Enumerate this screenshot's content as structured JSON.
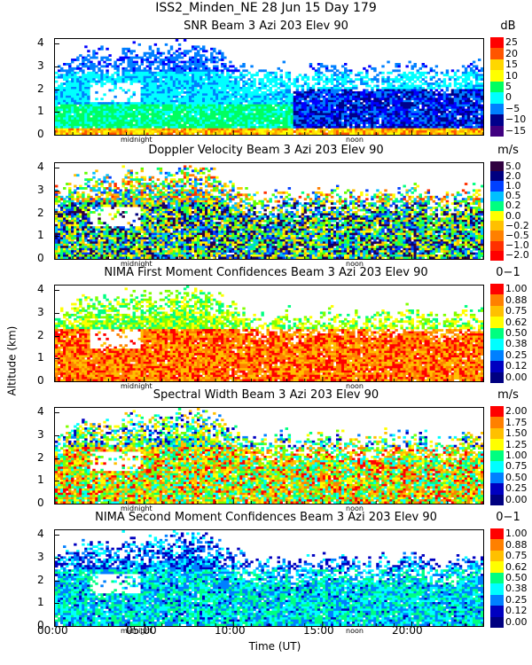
{
  "figure": {
    "title_line1": "ISS2_Minden_NE  28 Jun 15 Day 179",
    "ylabel": "Altitude (km)",
    "xlabel": "Time (UT)",
    "x_ticks": [
      "00:00",
      "05:00",
      "10:00",
      "15:00",
      "20:00"
    ],
    "y_ticks": [
      "0",
      "1",
      "2",
      "3",
      "4"
    ],
    "midnight_label": "midnight",
    "noon_label": "noon"
  },
  "chart_data": [
    {
      "type": "heatmap",
      "title": "SNR Beam 3 Azi 203 Elev 90",
      "units": "dB",
      "colorbar": [
        "25",
        "20",
        "15",
        "10",
        "5",
        "0",
        "−5",
        "−10",
        "−15"
      ],
      "colors": [
        "#ff0000",
        "#ff5500",
        "#ffa500",
        "#ffd700",
        "#ffff00",
        "#7fff00",
        "#00ff60",
        "#00ffff",
        "#0080ff",
        "#0000ff",
        "#00008b",
        "#400080"
      ],
      "xlim": [
        0,
        24
      ],
      "ylim": [
        0,
        4.2
      ],
      "xlabel": "Time (UT)",
      "ylabel": "Altitude (km)"
    },
    {
      "type": "heatmap",
      "title": "Doppler Velocity Beam 3 Azi 203 Elev 90",
      "units": "m/s",
      "colorbar": [
        "5.0",
        "2.0",
        "1.0",
        "0.5",
        "0.2",
        "0.0",
        "−0.2",
        "−0.5",
        "−1.0",
        "−2.0"
      ],
      "colors": [
        "#300040",
        "#000080",
        "#0040ff",
        "#00c0ff",
        "#00ff80",
        "#60ff00",
        "#ffff00",
        "#ffc000",
        "#ff8000",
        "#ff3000",
        "#ff0000"
      ],
      "xlim": [
        0,
        24
      ],
      "ylim": [
        0,
        4.2
      ],
      "xlabel": "Time (UT)",
      "ylabel": "Altitude (km)"
    },
    {
      "type": "heatmap",
      "title": "NIMA First Moment Confidences Beam 3 Azi 203 Elev 90",
      "units": "0−1",
      "colorbar": [
        "1.00",
        "0.88",
        "0.75",
        "0.62",
        "0.50",
        "0.38",
        "0.25",
        "0.12",
        "0.00"
      ],
      "colors": [
        "#ff0000",
        "#ff8000",
        "#ffc000",
        "#ffff00",
        "#80ff00",
        "#00ff80",
        "#00ffff",
        "#0080ff",
        "#0000c0",
        "#000080"
      ],
      "xlim": [
        0,
        24
      ],
      "ylim": [
        0,
        4.2
      ],
      "xlabel": "Time (UT)",
      "ylabel": "Altitude (km)"
    },
    {
      "type": "heatmap",
      "title": "Spectral Width Beam 3 Azi 203 Elev 90",
      "units": "m/s",
      "colorbar": [
        "2.00",
        "1.75",
        "1.50",
        "1.25",
        "1.00",
        "0.75",
        "0.50",
        "0.25",
        "0.00"
      ],
      "colors": [
        "#ff0000",
        "#ff8000",
        "#ffc000",
        "#ffff00",
        "#80ff00",
        "#00ff80",
        "#00ffff",
        "#0080ff",
        "#0000c0",
        "#000080"
      ],
      "xlim": [
        0,
        24
      ],
      "ylim": [
        0,
        4.2
      ],
      "xlabel": "Time (UT)",
      "ylabel": "Altitude (km)"
    },
    {
      "type": "heatmap",
      "title": "NIMA Second Moment Confidences Beam 3 Azi 203 Elev 90",
      "units": "0−1",
      "colorbar": [
        "1.00",
        "0.88",
        "0.75",
        "0.62",
        "0.50",
        "0.38",
        "0.25",
        "0.12",
        "0.00"
      ],
      "colors": [
        "#ff0000",
        "#ff8000",
        "#ffc000",
        "#ffff00",
        "#80ff00",
        "#00ff80",
        "#00ffff",
        "#0080ff",
        "#0000c0",
        "#000080"
      ],
      "xlim": [
        0,
        24
      ],
      "ylim": [
        0,
        4.2
      ],
      "xlabel": "Time (UT)",
      "ylabel": "Altitude (km)"
    }
  ]
}
